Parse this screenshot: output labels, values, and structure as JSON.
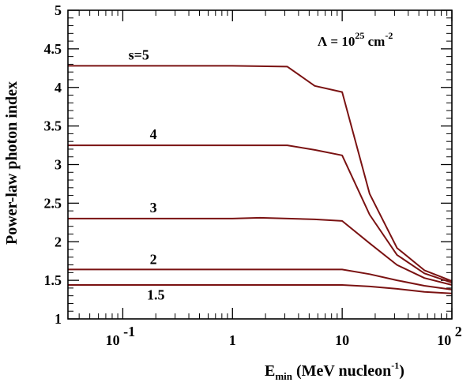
{
  "chart_data": {
    "type": "line",
    "xscale": "log",
    "xlim": [
      0.03162,
      100
    ],
    "ylim": [
      1,
      5
    ],
    "xlabel": {
      "main": "E",
      "sub": "min",
      "rest": " (MeV nucleon",
      "sup": "-1",
      "close": ")"
    },
    "ylabel": "Power-law photon index",
    "annotation": {
      "symbol": "Λ = 10",
      "sup": "25",
      "unit": " cm",
      "unit_sup": "-2"
    },
    "x_ticks": [
      {
        "value": 0.1,
        "base": "10",
        "exp": "-1"
      },
      {
        "value": 1,
        "text": "1"
      },
      {
        "value": 10,
        "text": "10"
      },
      {
        "value": 100,
        "base": "10",
        "exp": "2"
      }
    ],
    "y_ticks": [
      "1",
      "1.5",
      "2",
      "2.5",
      "3",
      "3.5",
      "4",
      "4.5",
      "5"
    ],
    "series": [
      {
        "name": "s=5",
        "label": "s=5",
        "label_at": [
          0.14,
          4.36
        ],
        "x": [
          0.03162,
          1,
          3.16,
          5.62,
          10,
          17.8,
          31.6,
          56.2,
          100
        ],
        "y": [
          4.28,
          4.28,
          4.27,
          4.02,
          3.94,
          2.62,
          1.92,
          1.63,
          1.49
        ]
      },
      {
        "name": "s=4",
        "label": "4",
        "label_at": [
          0.19,
          3.33
        ],
        "x": [
          0.03162,
          1,
          3.16,
          5.62,
          10,
          17.8,
          31.6,
          56.2,
          100
        ],
        "y": [
          3.25,
          3.25,
          3.25,
          3.19,
          3.12,
          2.35,
          1.83,
          1.59,
          1.47
        ]
      },
      {
        "name": "s=3",
        "label": "3",
        "label_at": [
          0.19,
          2.38
        ],
        "x": [
          0.03162,
          1,
          1.78,
          5.62,
          10,
          17.8,
          31.6,
          56.2,
          100
        ],
        "y": [
          2.3,
          2.3,
          2.31,
          2.29,
          2.27,
          1.98,
          1.7,
          1.53,
          1.44
        ]
      },
      {
        "name": "s=2",
        "label": "2",
        "label_at": [
          0.19,
          1.71
        ],
        "x": [
          0.03162,
          1,
          5.62,
          10,
          17.8,
          31.6,
          56.2,
          100
        ],
        "y": [
          1.64,
          1.64,
          1.64,
          1.64,
          1.58,
          1.5,
          1.43,
          1.38
        ]
      },
      {
        "name": "s=1.5",
        "label": "1.5",
        "label_at": [
          0.2,
          1.25
        ],
        "x": [
          0.03162,
          1,
          10,
          17.8,
          31.6,
          56.2,
          100
        ],
        "y": [
          1.44,
          1.44,
          1.44,
          1.42,
          1.39,
          1.35,
          1.33
        ]
      }
    ],
    "colors": {
      "curve": "#7a1212",
      "axis": "#000000"
    }
  }
}
